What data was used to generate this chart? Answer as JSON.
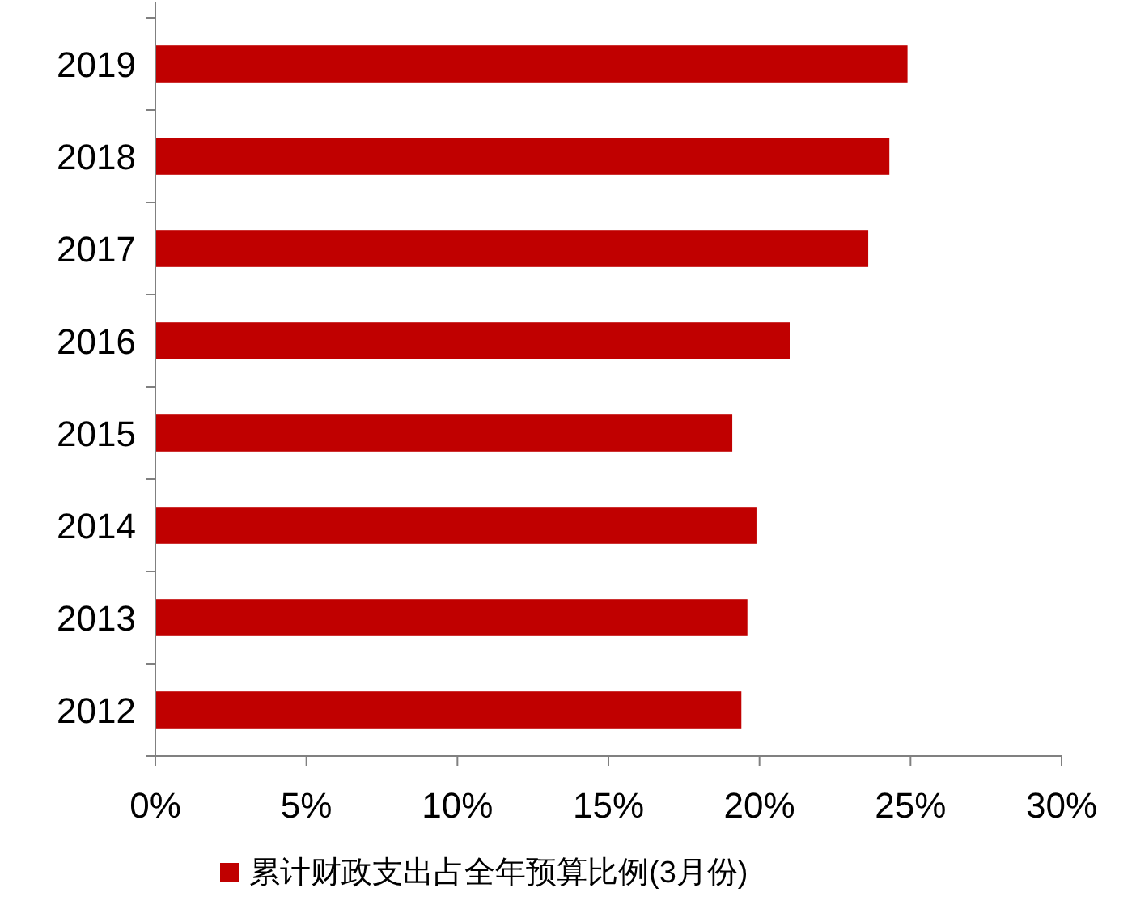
{
  "chart_data": {
    "type": "bar",
    "orientation": "horizontal",
    "categories": [
      "2019",
      "2018",
      "2017",
      "2016",
      "2015",
      "2014",
      "2013",
      "2012"
    ],
    "series": [
      {
        "name": "累计财政支出占全年预算比例(3月份)",
        "color": "#c00000",
        "values": [
          24.9,
          24.3,
          23.6,
          21.0,
          19.1,
          19.9,
          19.6,
          19.4
        ]
      }
    ],
    "xlim": [
      0,
      30
    ],
    "xticks": [
      {
        "value": 0,
        "label": "0%"
      },
      {
        "value": 5,
        "label": "5%"
      },
      {
        "value": 10,
        "label": "10%"
      },
      {
        "value": 15,
        "label": "15%"
      },
      {
        "value": 20,
        "label": "20%"
      },
      {
        "value": 25,
        "label": "25%"
      },
      {
        "value": 30,
        "label": "30%"
      }
    ],
    "grid": false,
    "legend": "bottom"
  }
}
